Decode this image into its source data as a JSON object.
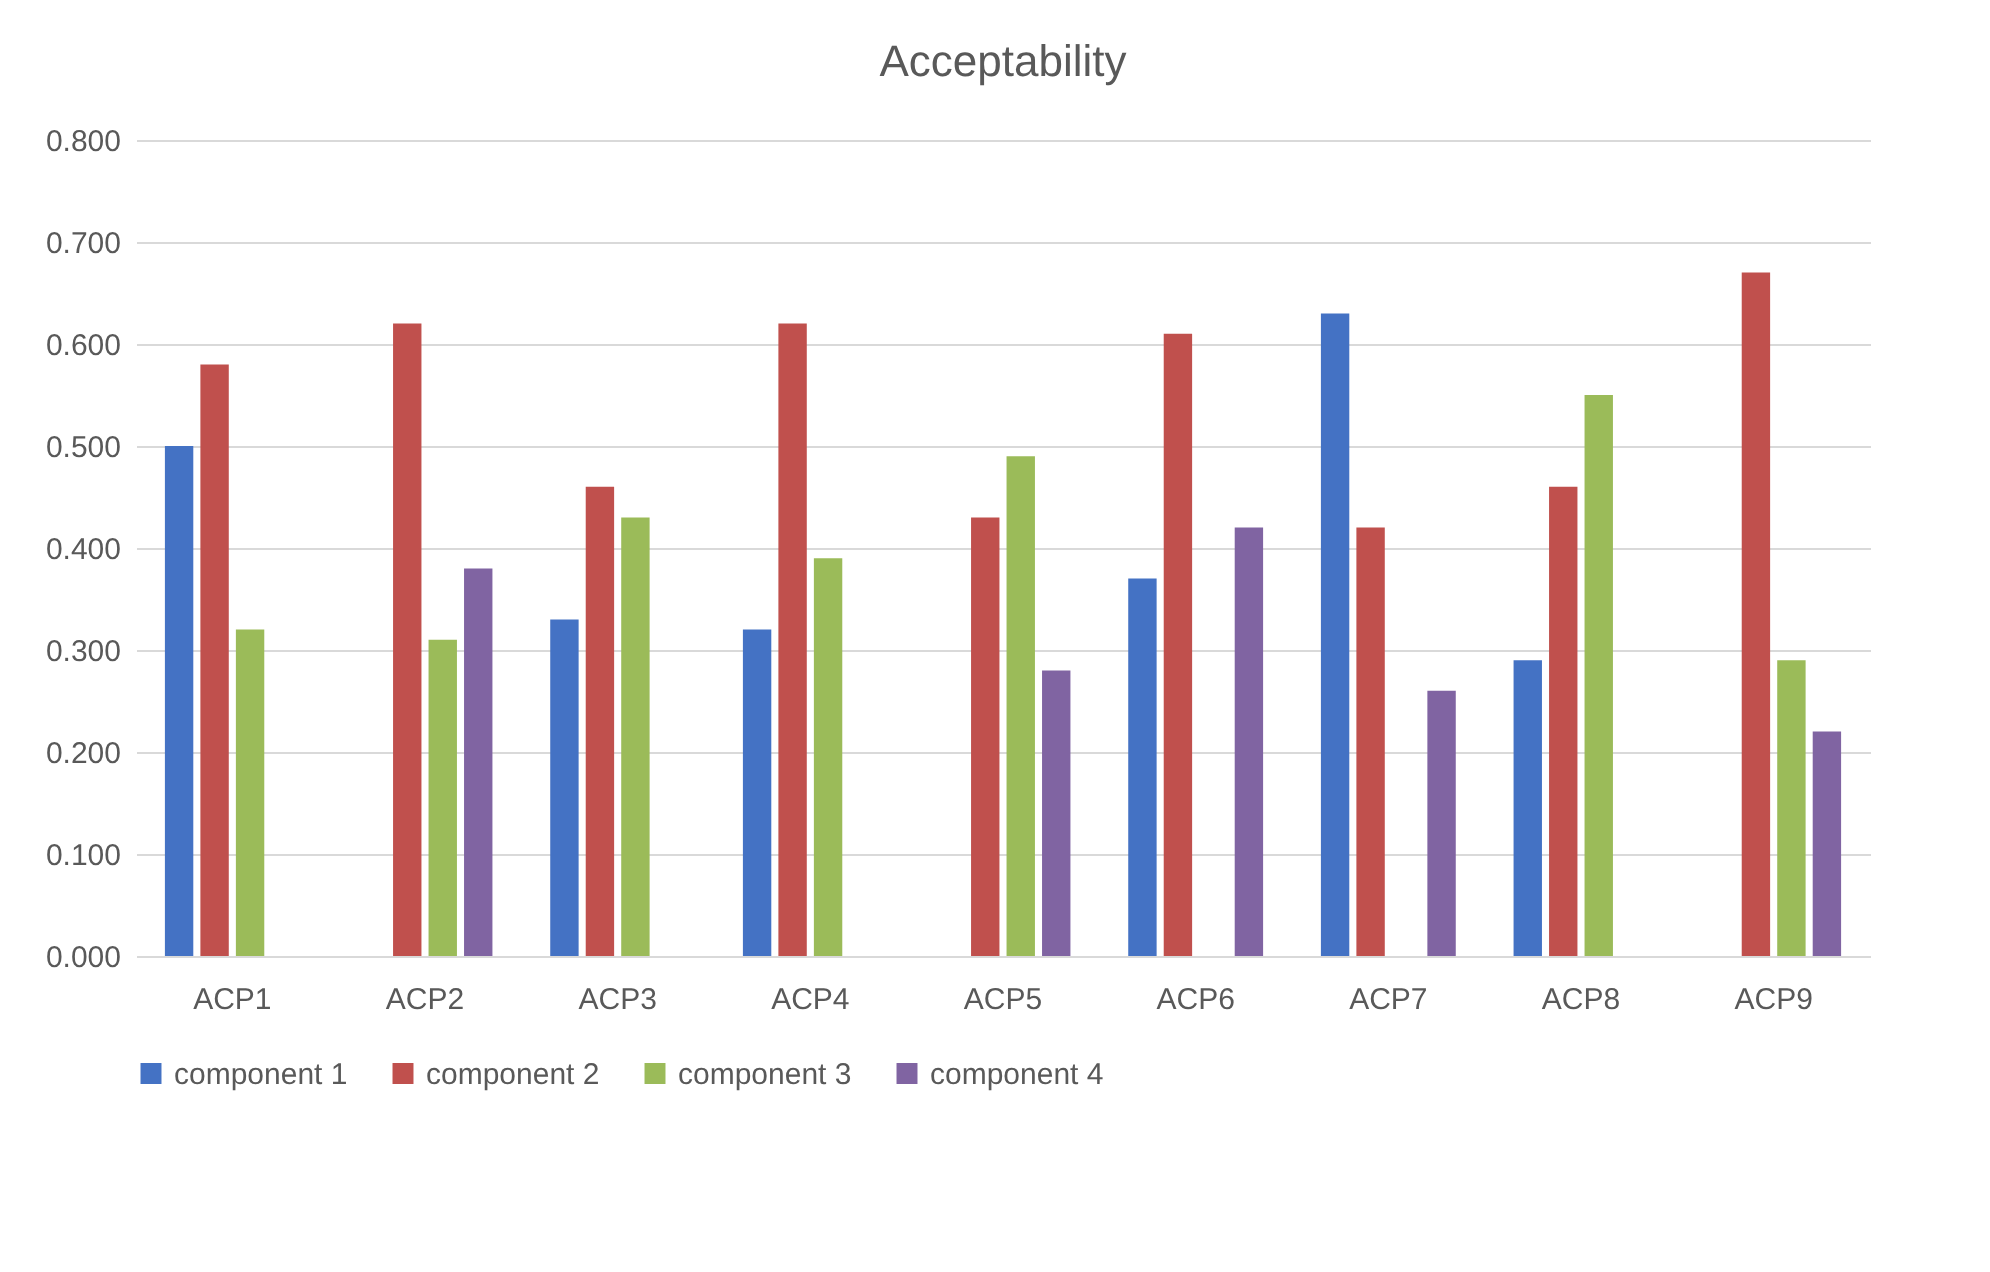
{
  "chart_data": {
    "type": "bar",
    "title": "Acceptability",
    "categories": [
      "ACP1",
      "ACP2",
      "ACP3",
      "ACP4",
      "ACP5",
      "ACP6",
      "ACP7",
      "ACP8",
      "ACP9"
    ],
    "series": [
      {
        "name": "component 1",
        "color": "#4472c4",
        "values": [
          0.5,
          null,
          0.33,
          0.32,
          null,
          0.37,
          0.63,
          0.29,
          null
        ]
      },
      {
        "name": "component 2",
        "color": "#c0504d",
        "values": [
          0.58,
          0.62,
          0.46,
          0.62,
          0.43,
          0.61,
          0.42,
          0.46,
          0.67
        ]
      },
      {
        "name": "component 3",
        "color": "#9bbb59",
        "values": [
          0.32,
          0.31,
          0.43,
          0.39,
          0.49,
          null,
          null,
          0.55,
          0.29
        ]
      },
      {
        "name": "component 4",
        "color": "#8064a2",
        "values": [
          null,
          0.38,
          null,
          null,
          0.28,
          0.42,
          0.26,
          null,
          0.22
        ]
      }
    ],
    "ylim": [
      0,
      0.8
    ],
    "yticks": [
      {
        "value": 0,
        "label": "0.000"
      },
      {
        "value": 0.1,
        "label": "0.100"
      },
      {
        "value": 0.2,
        "label": "0.200"
      },
      {
        "value": 0.3,
        "label": "0.300"
      },
      {
        "value": 0.4,
        "label": "0.400"
      },
      {
        "value": 0.5,
        "label": "0.500"
      },
      {
        "value": 0.6,
        "label": "0.600"
      },
      {
        "value": 0.7,
        "label": "0.700"
      },
      {
        "value": 0.8,
        "label": "0.800"
      }
    ],
    "grid": "y",
    "legend": "bottom"
  }
}
